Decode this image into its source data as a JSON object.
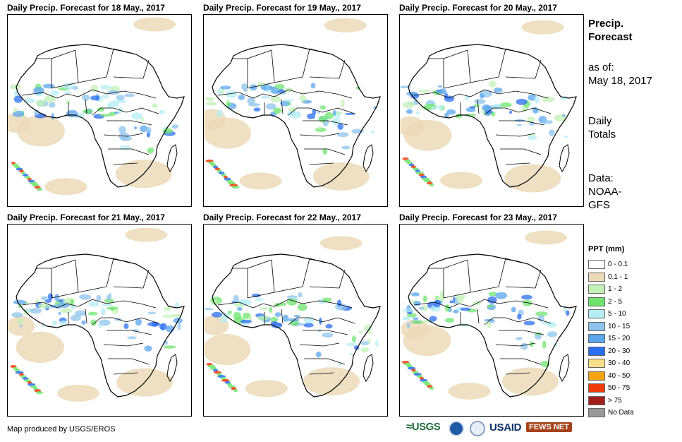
{
  "panels": [
    {
      "title": "Daily Precip. Forecast for 18 May., 2017"
    },
    {
      "title": "Daily Precip. Forecast for 19 May., 2017"
    },
    {
      "title": "Daily Precip. Forecast for 20 May., 2017"
    },
    {
      "title": "Daily Precip. Forecast for 21 May., 2017"
    },
    {
      "title": "Daily Precip. Forecast for 22 May., 2017"
    },
    {
      "title": "Daily Precip. Forecast for 23 May., 2017"
    }
  ],
  "sidebar": {
    "title_line1": "Precip.",
    "title_line2": "Forecast",
    "asof_line1": "as of:",
    "asof_line2": "May 18, 2017",
    "daily_line1": "Daily",
    "daily_line2": "Totals",
    "data_line1": "Data:",
    "data_line2": "NOAA-",
    "data_line3": "GFS"
  },
  "legend": {
    "title": "PPT (mm)",
    "items": [
      {
        "label": "0 - 0.1",
        "color": "#ffffff"
      },
      {
        "label": "0.1 - 1",
        "color": "#ecd9b8"
      },
      {
        "label": "1 - 2",
        "color": "#c2f2b5"
      },
      {
        "label": "2 - 5",
        "color": "#6ee46e"
      },
      {
        "label": "5 - 10",
        "color": "#b4eef4"
      },
      {
        "label": "10 - 15",
        "color": "#8ec4ee"
      },
      {
        "label": "15 - 20",
        "color": "#5aa6ee"
      },
      {
        "label": "20 - 30",
        "color": "#2a6ef2"
      },
      {
        "label": "30 - 40",
        "color": "#f8e08a"
      },
      {
        "label": "40 - 50",
        "color": "#f4a412"
      },
      {
        "label": "50 - 75",
        "color": "#f03c0c"
      },
      {
        "label": "> 75",
        "color": "#a41e1e"
      },
      {
        "label": "No Data",
        "color": "#999999"
      }
    ]
  },
  "credit": "Map produced by USGS/EROS",
  "logos": {
    "usgs": "≈USGS",
    "usaid": "USAID",
    "fews": "FEWS NET"
  }
}
